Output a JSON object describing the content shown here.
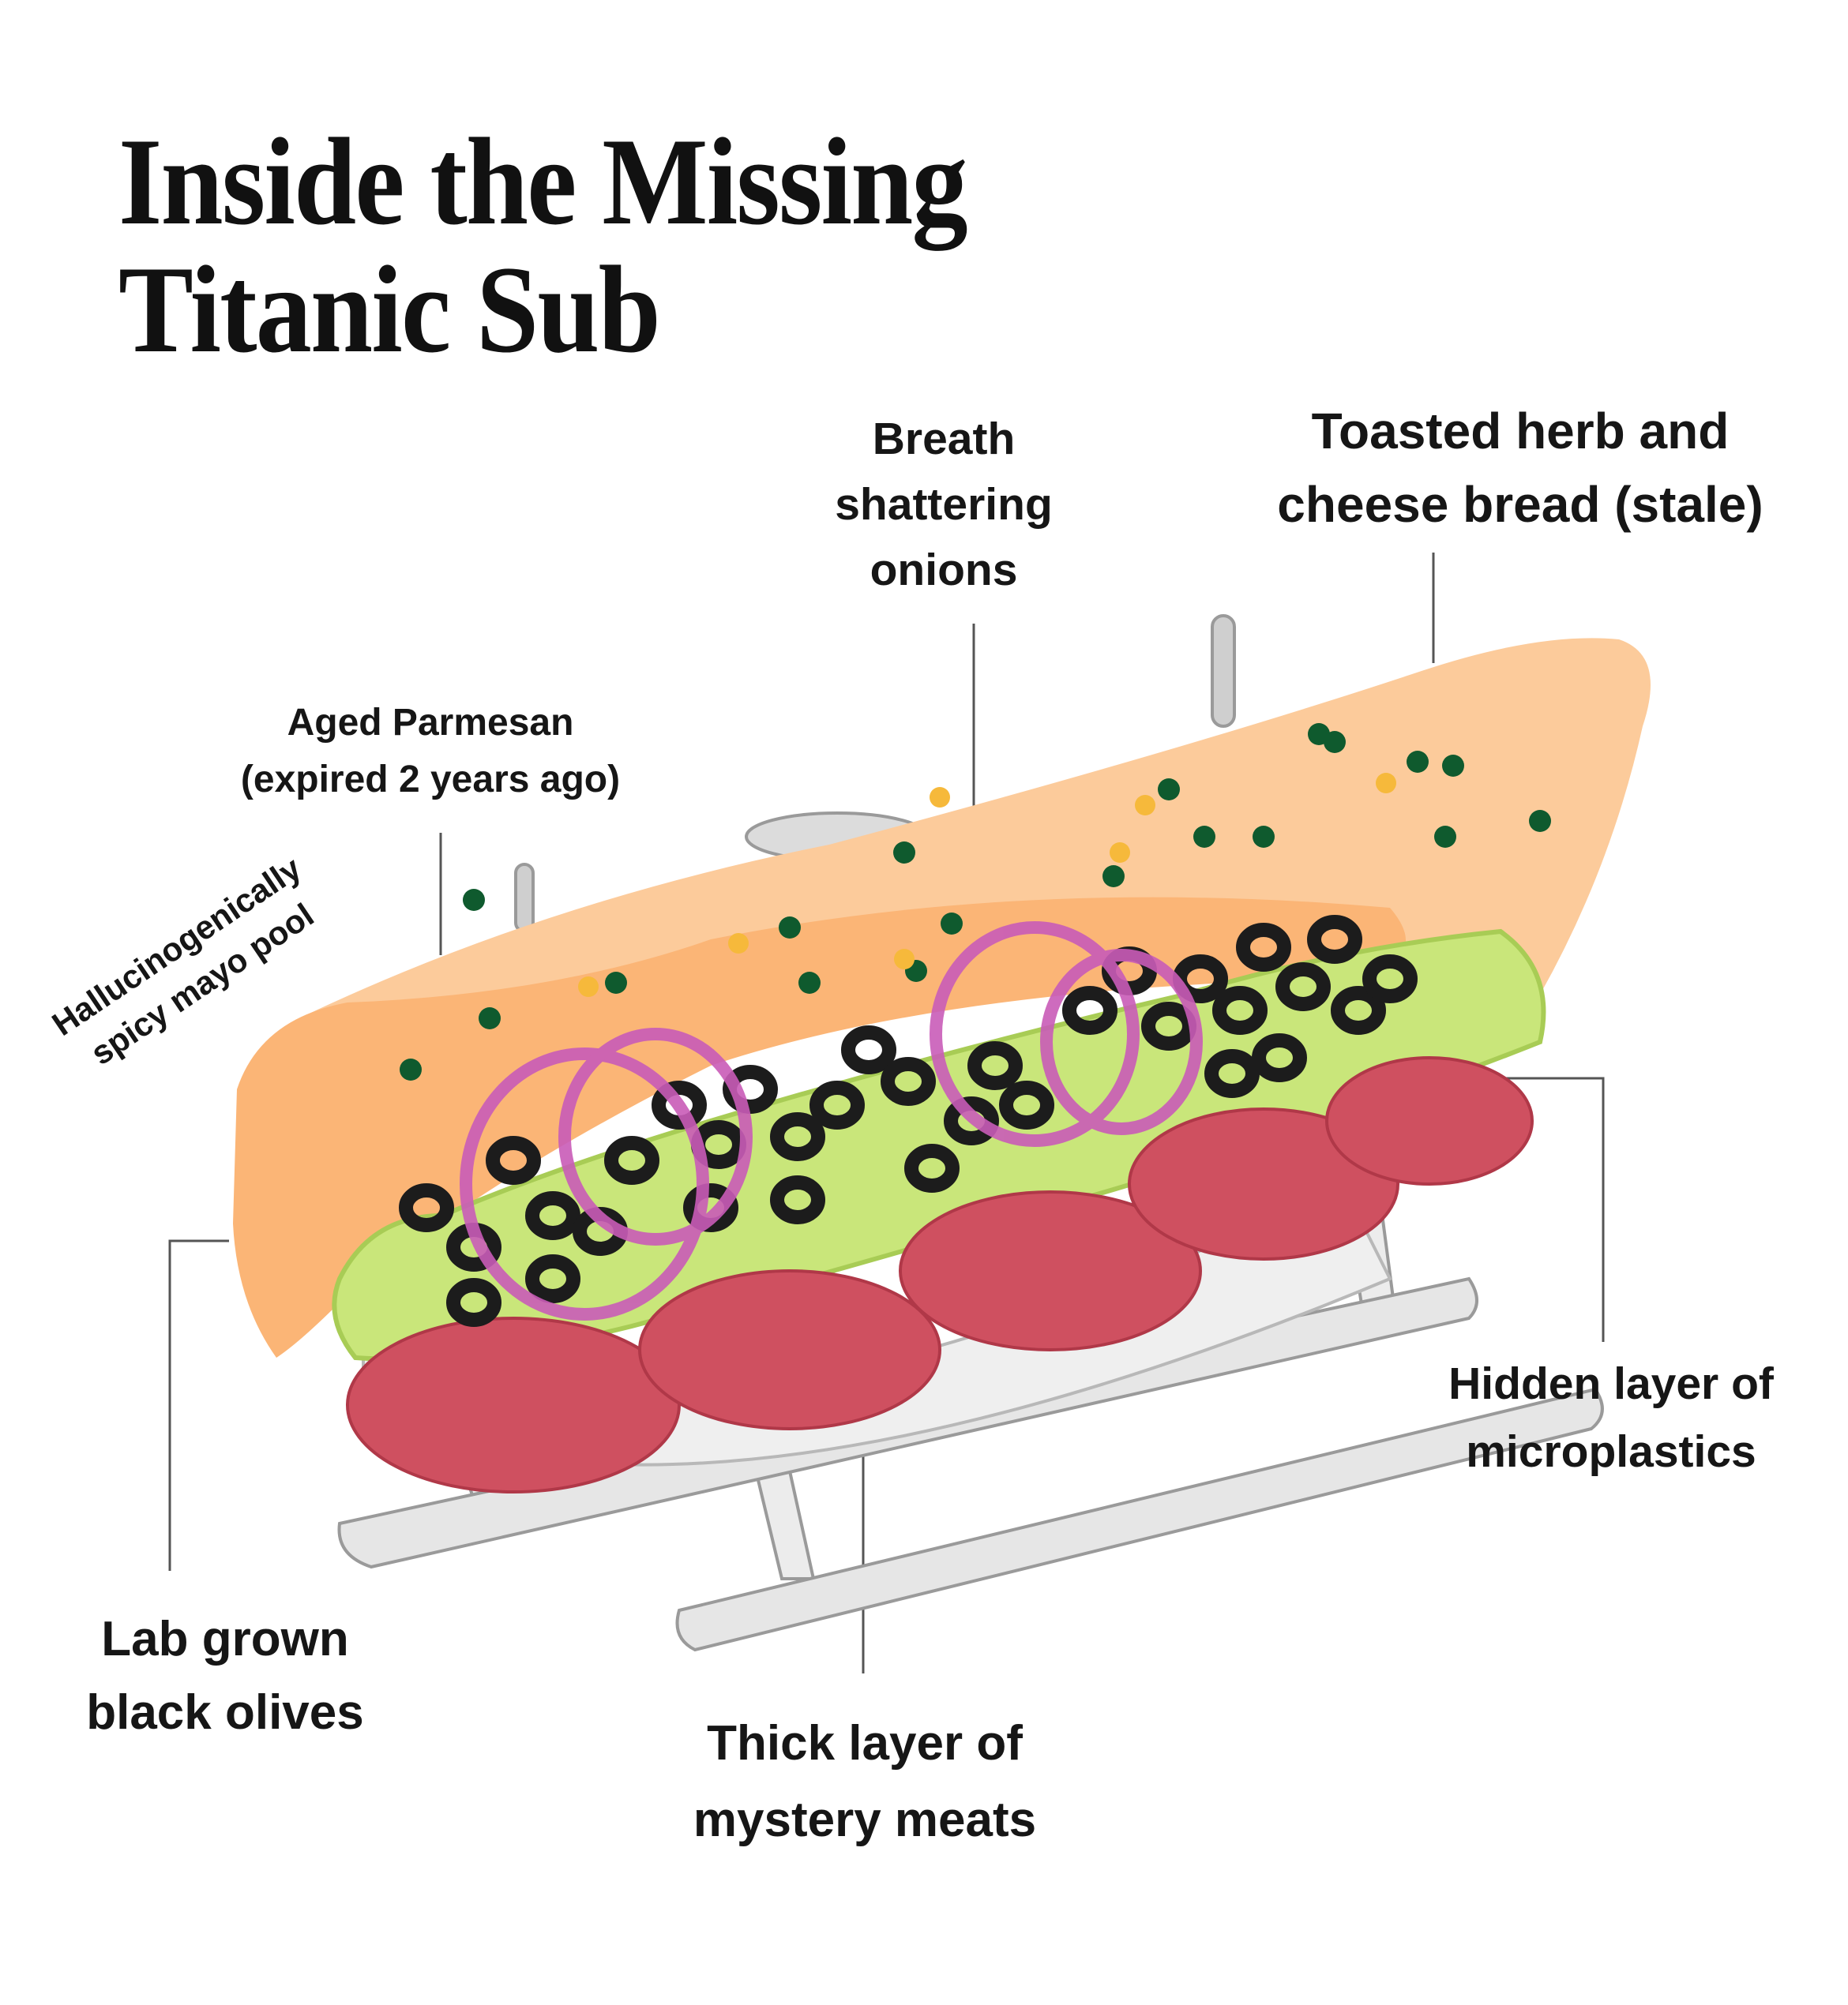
{
  "title": {
    "line1": "Inside the Missing",
    "line2": "Titanic Sub"
  },
  "labels": {
    "breath": [
      "Breath",
      "shattering",
      "onions"
    ],
    "bread": [
      "Toasted herb and",
      "cheese bread (stale)"
    ],
    "parmesan": [
      "Aged Parmesan",
      "(expired 2 years ago)"
    ],
    "mayo": [
      "Hallucinogenically",
      "spicy mayo pool"
    ],
    "olives": [
      "Lab grown",
      "black olives"
    ],
    "meats": [
      "Thick layer of",
      "mystery meats"
    ],
    "microplastics": [
      "Hidden layer of",
      "microplastics"
    ]
  },
  "colors": {
    "bread": "#fccb9b",
    "mayo": "#fbb576",
    "lettuce": "#c9e67a",
    "salami": "#cf5060",
    "olive": "#1c1c1c",
    "onion": "#c95cb8",
    "herb": "#0f5a2e",
    "cheese": "#f6b93b",
    "sub_frame": "#d8d8d8"
  }
}
